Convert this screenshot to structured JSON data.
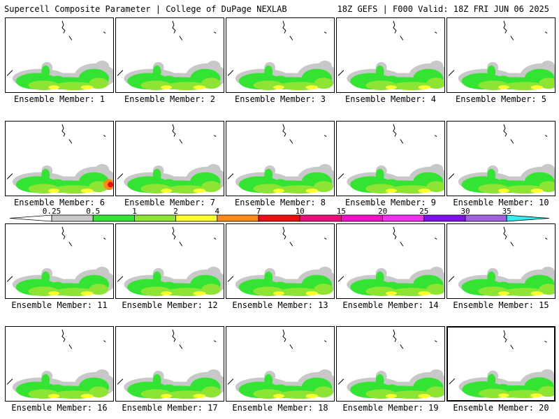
{
  "header": {
    "title": "Supercell Composite Parameter | College of DuPage NEXLAB",
    "run_info": "18Z GEFS | F000 Valid: 18Z FRI JUN 06 2025"
  },
  "member_label_prefix": "Ensemble Member: ",
  "members": [
    1,
    2,
    3,
    4,
    5,
    6,
    7,
    8,
    9,
    10,
    11,
    12,
    13,
    14,
    15,
    16,
    17,
    18,
    19,
    20
  ],
  "selected_member": 20,
  "legend": {
    "tick_labels": [
      "0.25",
      "0.5",
      "1",
      "2",
      "4",
      "7",
      "10",
      "15",
      "20",
      "25",
      "30",
      "35"
    ],
    "colors": {
      "0.25-0.5": "#c8c8c8",
      "0.5-1": "#33e433",
      "1-2": "#8ee432",
      "2-4": "#ffff30",
      "4-7": "#ff8a18",
      "7-10": "#e81010",
      "10-15": "#e8107a",
      "15-20": "#f010c8",
      "20-25": "#f030f0",
      "25-30": "#8010e8",
      "30-35": "#a060e0",
      ">35": "#30f0f0"
    }
  }
}
